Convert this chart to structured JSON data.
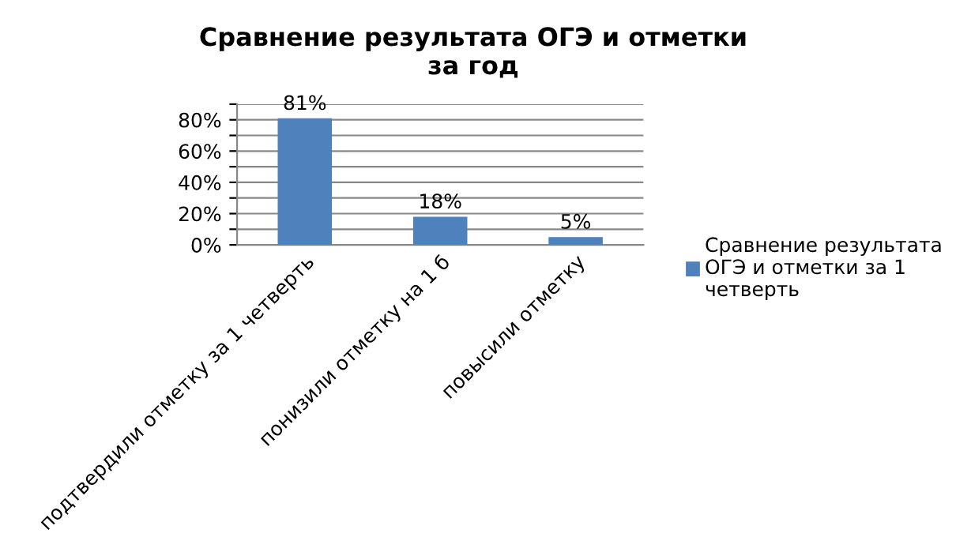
{
  "chart_data": {
    "type": "bar",
    "title": "Сравнение результата ОГЭ и отметки\nза год",
    "categories": [
      "подтвердили отметку за 1 четверть",
      "понизили отметку на 1 б",
      "повысили отметку"
    ],
    "series": [
      {
        "name": "Сравнение результата\nОГЭ и отметки за 1\nчетверть",
        "color": "#4f81bd",
        "values": [
          81,
          18,
          5
        ],
        "value_labels": [
          "81%",
          "18%",
          "5%"
        ]
      }
    ],
    "ylim": [
      0,
      90
    ],
    "yticks": [
      {
        "value": 0,
        "label": "0%"
      },
      {
        "value": 10,
        "label": null
      },
      {
        "value": 20,
        "label": "20%"
      },
      {
        "value": 30,
        "label": null
      },
      {
        "value": 40,
        "label": "40%"
      },
      {
        "value": 50,
        "label": null
      },
      {
        "value": 60,
        "label": "60%"
      },
      {
        "value": 70,
        "label": null
      },
      {
        "value": 80,
        "label": "80%"
      },
      {
        "value": 90,
        "label": null
      }
    ],
    "grid": "y",
    "legend": "right"
  }
}
